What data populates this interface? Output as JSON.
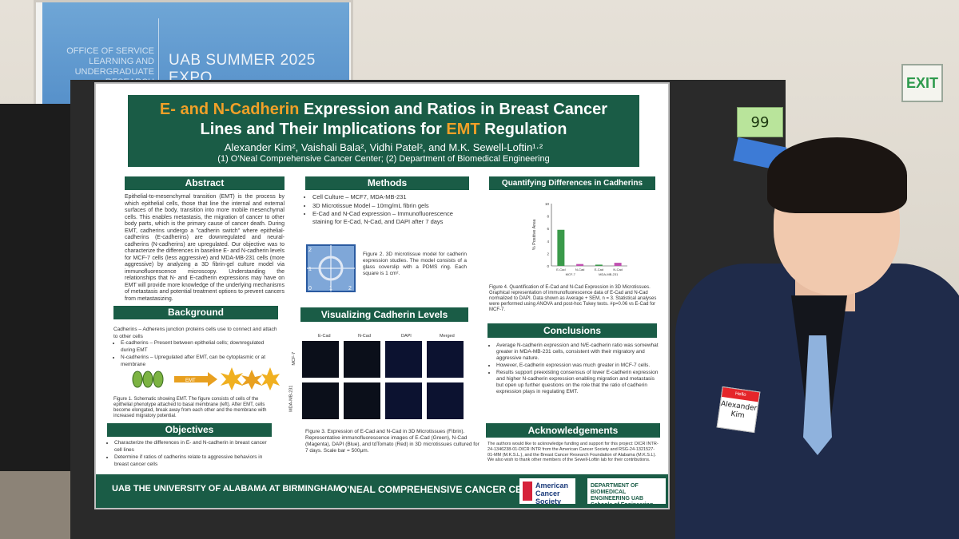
{
  "screen": {
    "left_text": "OFFICE OF SERVICE LEARNING AND UNDERGRADUATE RESEARCH",
    "title": "UAB SUMMER 2025 EXPO"
  },
  "board_tag": "99",
  "exit_sign": "EXIT",
  "poster": {
    "title_line1_a": "E- and N-Cadherin",
    "title_line1_b": " Expression and Ratios in Breast Cancer",
    "title_line2_a": "Lines and Their Implications for ",
    "title_line2_b": "EMT",
    "title_line2_c": " Regulation",
    "authors": "Alexander Kim², Vaishali Bala², Vidhi Patel², and M.K. Sewell-Loftin¹·²",
    "affiliations": "(1) O'Neal Comprehensive Cancer Center; (2) Department of Biomedical Engineering",
    "abstract": {
      "heading": "Abstract",
      "body": "Epithelial-to-mesenchymal transition (EMT) is the process by which epithelial cells, those that line the internal and external surfaces of the body, transition into more mobile mesenchymal cells. This enables metastasis, the migration of cancer to other body parts, which is the primary cause of cancer death. During EMT, cadherins undergo a \"cadherin switch\" where epithelial-cadherins (E-cadherins) are downregulated and neural-cadherins (N-cadherins) are upregulated. Our objective was to characterize the differences in baseline E- and N-cadherin levels for MCF-7 cells (less aggressive) and MDA-MB-231 cells (more aggressive) by analyzing a 3D fibrin-gel culture model via immunofluorescence microscopy. Understanding the relationships that N- and E-cadherin expressions may have on EMT will provide more knowledge of the underlying mechanisms of metastasis and potential treatment options to prevent cancers from metastasizing."
    },
    "background": {
      "heading": "Background",
      "intro": "Cadherins – Adherens junction proteins cells use to connect and attach to other cells",
      "items": [
        "E-cadherins – Present between epithelial cells; downregulated during EMT",
        "N-cadherins – Upregulated after EMT, can be cytoplasmic or at membrane"
      ],
      "arrow_label": "EMT",
      "caption": "Figure 1. Schematic showing EMT. The figure consists of cells of the epithelial phenotype attached to basal membrane (left). After EMT, cells become elongated, break away from each other and the membrane with increased migratory potential."
    },
    "objectives": {
      "heading": "Objectives",
      "items": [
        "Characterize the differences in E- and N-cadherin in breast cancer cell lines",
        "Determine if ratios of cadherins relate to aggressive behaviors in breast cancer cells"
      ]
    },
    "methods": {
      "heading": "Methods",
      "items": [
        "Cell Culture – MCF7, MDA-MB-231",
        "3D Microtissue Model – 10mg/mL fibrin gels",
        "E-Cad and N-Cad expression – Immunofluorescence staining for E-Cad, N-Cad, and DAPI after 7 days"
      ],
      "grid_labels": [
        "2",
        "1",
        "0",
        "1",
        "2"
      ],
      "caption": "Figure 2. 3D microtissue model for cadherin expression studies. The model consists of a glass coverslip with a PDMS ring. Each square is 1 cm²."
    },
    "visualizing": {
      "heading": "Visualizing Cadherin Levels",
      "columns": [
        "E-Cad",
        "N-Cad",
        "DAPI",
        "Merged"
      ],
      "rows": [
        "MCF-7",
        "MDA-MB-231"
      ],
      "caption": "Figure 3. Expression of E-Cad and N-Cad in 3D Microtissues (Fibrin). Representative immunofluorescence images of E-Cad (Green), N-Cad (Magenta), DAPI (Blue), and tdTomato (Red) in 3D microtissues cultured for 7 days. Scale bar = 500μm."
    },
    "quantifying": {
      "heading": "Quantifying Differences in Cadherins",
      "chart": {
        "ylabel": "% Positive Area",
        "yticks": [
          "10",
          "8",
          "6",
          "4",
          "2",
          "0"
        ],
        "bars": [
          {
            "label": "E-Cad",
            "value": 5.8,
            "color": "#3a9a4a"
          },
          {
            "label": "N-Cad",
            "value": 0.3,
            "color": "#c050b0"
          },
          {
            "label": "E-Cad",
            "value": 0.2,
            "color": "#3a9a4a"
          },
          {
            "label": "N-Cad",
            "value": 0.5,
            "color": "#c050b0"
          }
        ],
        "groups": [
          "MCF-7",
          "MDA-MB-231"
        ],
        "ymax": 10
      },
      "caption": "Figure 4. Quantification of E-Cad and N-Cad Expression in 3D Microtissues. Graphical representation of immunofluorescence data of E-Cad and N-Cad normalized to DAPI. Data shown as Average + SEM, n = 3. Statistical analyses were performed using ANOVA and post-hoc Tukey tests. #p=0.06 vs E-Cad for MCF-7."
    },
    "conclusions": {
      "heading": "Conclusions",
      "items": [
        "Average N-cadherin expression and N/E-cadherin ratio was somewhat greater in MDA-MB-231 cells, consistent with their migratory and aggressive nature.",
        "However, E-cadherin expression was much greater in MCF-7 cells.",
        "Results support preexisting consensus of lower E-cadherin expression and higher N-cadherin expression enabling migration and metastasis but open up further questions on the role that the ratio of cadherin expression plays in regulating EMT."
      ]
    },
    "acknowledgements": {
      "heading": "Acknowledgements",
      "body": "The authors would like to acknowledge funding and support for this project: DICR INTR-24-1346238-01-DICR INTR from the American Cancer Society and RSG-24-1321527-01-MM (M.K.S.L.), and the Breast Cancer Research Foundation of Alabama (M.K.S.L). We also wish to thank other members of the Sewell-Loftin lab for their contributions."
    },
    "footer": {
      "uab": "UAB THE UNIVERSITY OF ALABAMA AT BIRMINGHAM",
      "oneal": "O'NEAL COMPREHENSIVE CANCER CENTER",
      "acs": "American Cancer Society",
      "bme": "DEPARTMENT OF BIOMEDICAL ENGINEERING UAB Schools of Engineering and Medicine"
    }
  },
  "nametag": {
    "header": "Hello",
    "name": "Alexander Kim"
  }
}
